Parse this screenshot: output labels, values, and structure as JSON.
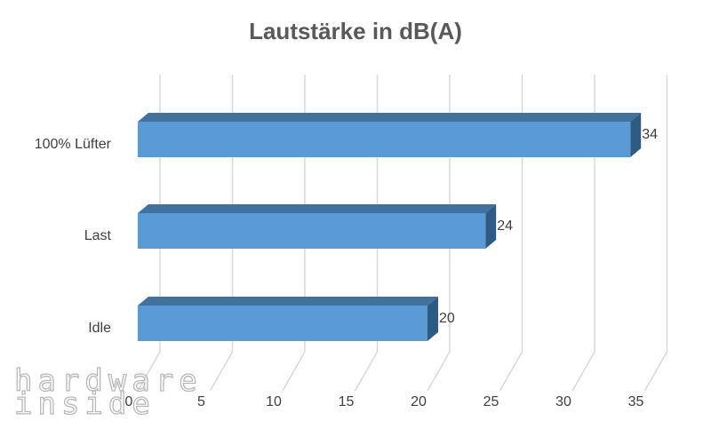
{
  "chart_data": {
    "type": "bar",
    "orientation": "horizontal",
    "style": "3d",
    "title": "Lautstärke in dB(A)",
    "categories": [
      "100% Lüfter",
      "Last",
      "Idle"
    ],
    "values": [
      34,
      24,
      20
    ],
    "data_labels": [
      "34",
      "24",
      "20"
    ],
    "xticks": [
      "0",
      "5",
      "10",
      "15",
      "20",
      "25",
      "30",
      "35"
    ],
    "xlim": [
      0,
      35
    ],
    "grid": true,
    "legend": "none",
    "xlabel": "",
    "ylabel": ""
  },
  "colors": {
    "bar_front": "#5b9bd5",
    "bar_top": "#41719c",
    "bar_side": "#2e5b86",
    "grid": "#d9d9d9",
    "text": "#404040",
    "title": "#595959"
  },
  "watermark": {
    "line1": "hardware",
    "line2": "inside"
  }
}
